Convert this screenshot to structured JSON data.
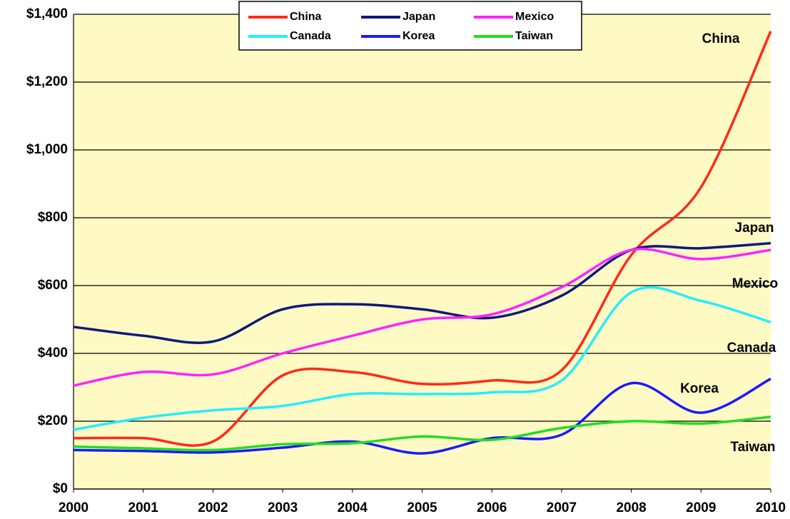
{
  "chart_data": {
    "type": "line",
    "x": [
      2000,
      2001,
      2002,
      2003,
      2004,
      2005,
      2006,
      2007,
      2008,
      2009,
      2010
    ],
    "xlim": [
      2000,
      2010
    ],
    "xticks": [
      2000,
      2001,
      2002,
      2003,
      2004,
      2005,
      2006,
      2007,
      2008,
      2009,
      2010
    ],
    "ylim": [
      0,
      1400
    ],
    "yticks": [
      {
        "value": 0,
        "label": "$0"
      },
      {
        "value": 200,
        "label": "$200"
      },
      {
        "value": 400,
        "label": "$400"
      },
      {
        "value": 600,
        "label": "$600"
      },
      {
        "value": 800,
        "label": "$800"
      },
      {
        "value": 1000,
        "label": "$1,000"
      },
      {
        "value": 1200,
        "label": "$1,200"
      },
      {
        "value": 1400,
        "label": "$1,400"
      }
    ],
    "grid": true,
    "legend": "top",
    "series": [
      {
        "name": "China",
        "color": "#ff2a1a",
        "values": [
          150,
          150,
          140,
          335,
          345,
          310,
          320,
          350,
          690,
          890,
          1350
        ]
      },
      {
        "name": "Japan",
        "color": "#0d1a7a",
        "values": [
          478,
          452,
          435,
          530,
          545,
          530,
          505,
          570,
          705,
          710,
          725
        ]
      },
      {
        "name": "Mexico",
        "color": "#ff22ff",
        "values": [
          305,
          345,
          338,
          400,
          452,
          500,
          515,
          595,
          705,
          678,
          705
        ]
      },
      {
        "name": "Canada",
        "color": "#22eeff",
        "values": [
          175,
          210,
          232,
          245,
          280,
          280,
          285,
          320,
          580,
          555,
          492
        ]
      },
      {
        "name": "Korea",
        "color": "#1a1aff",
        "values": [
          115,
          112,
          108,
          122,
          140,
          105,
          150,
          160,
          312,
          225,
          325
        ]
      },
      {
        "name": "Taiwan",
        "color": "#22dd22",
        "values": [
          125,
          120,
          115,
          132,
          135,
          155,
          145,
          180,
          200,
          193,
          213
        ]
      }
    ]
  }
}
